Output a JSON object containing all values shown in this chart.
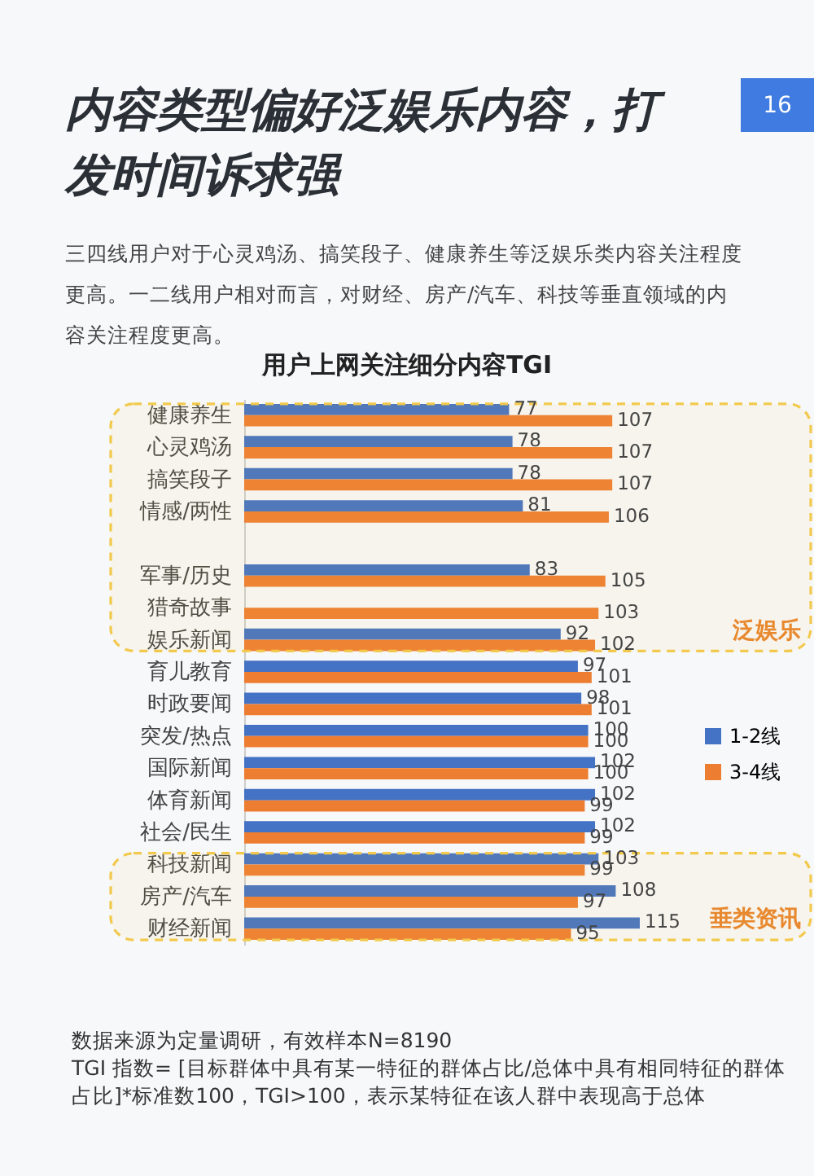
{
  "chart_data": {
    "type": "bar",
    "orientation": "horizontal",
    "title": "内容类型偏好泛娱乐内容，打发时间诉求强",
    "subtitle": "三四线用户对于心灵鸡汤、搞笑段子、健康养生等泛娱乐类内容关注程度更高。一二线用户相对而言，对财经、房产/汽车、科技等垂直领域的内容关注程度更高。",
    "categories": [
      "健康养生",
      "心灵鸡汤",
      "搞笑段子",
      "情感/两性",
      null,
      "军事/历史",
      "猎奇故事",
      "娱乐新闻",
      "育儿教育",
      "时政要闻",
      "突发/热点",
      "国际新闻",
      "体育新闻",
      "社会/民生",
      "科技新闻",
      "房产/汽车",
      "财经新闻"
    ],
    "series": [
      {
        "name": "1-2线",
        "color": "#4472c4",
        "values": [
          77,
          78,
          78,
          81,
          null,
          83,
          null,
          92,
          97,
          98,
          100,
          102,
          102,
          102,
          103,
          108,
          115
        ]
      },
      {
        "name": "3-4线",
        "color": "#ed7d31",
        "values": [
          107,
          107,
          107,
          106,
          null,
          105,
          103,
          102,
          101,
          101,
          100,
          100,
          99,
          99,
          99,
          97,
          95
        ]
      }
    ],
    "data_labels": true,
    "legend": "right",
    "bands": [
      {
        "axis": "y",
        "from": "健康养生",
        "to": "娱乐新闻",
        "label": "泛娱乐",
        "color": "#f2c94c"
      },
      {
        "axis": "y",
        "from": "科技新闻",
        "to": "财经新闻",
        "label": "垂类资讯",
        "color": "#f2c94c"
      }
    ],
    "annotations": [
      "用户上网关注细分内容TGI",
      "16",
      "数据来源为定量调研，有效样本N=8190",
      "TGI 指数= [目标群体中具有某一特征的群体占比/总体中具有相同特征的群体占比]*标准数100，TGI>100，表示某特征在该人群中表现高于总体"
    ]
  }
}
